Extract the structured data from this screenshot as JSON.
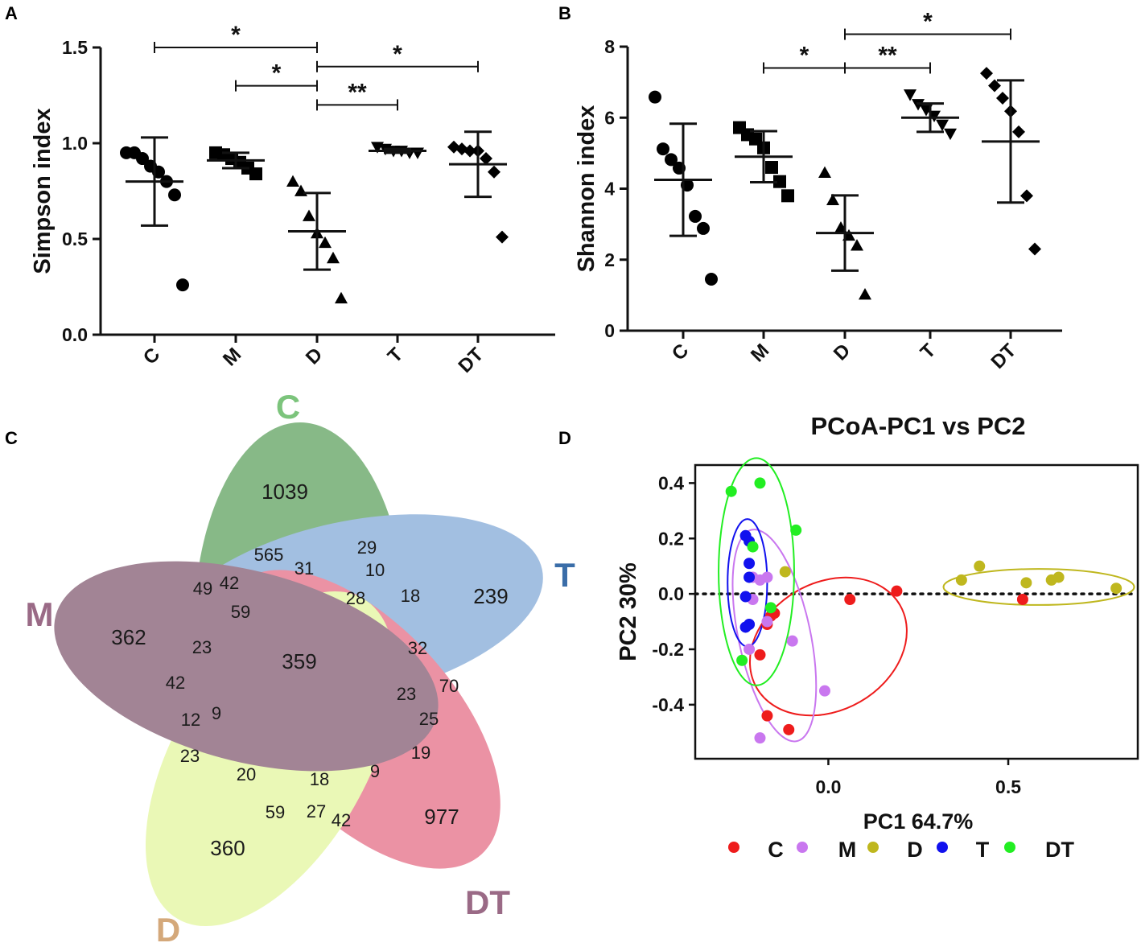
{
  "chart_data": [
    {
      "panel": "A",
      "type": "scatter",
      "ylabel": "Simpson index",
      "xlabel": "",
      "categories": [
        "C",
        "M",
        "D",
        "T",
        "DT"
      ],
      "ylim": [
        0.0,
        1.5
      ],
      "yticks": [
        "0.0",
        "0.5",
        "1.0",
        "1.5"
      ],
      "ytick_values": [
        0.0,
        0.5,
        1.0,
        1.5
      ],
      "points": [
        [
          0.95,
          0.95,
          0.92,
          0.88,
          0.85,
          0.8,
          0.73,
          0.26
        ],
        [
          0.95,
          0.94,
          0.92,
          0.9,
          0.87,
          0.84
        ],
        [
          0.8,
          0.75,
          0.62,
          0.53,
          0.48,
          0.4,
          0.19
        ],
        [
          0.98,
          0.97,
          0.96,
          0.96,
          0.95,
          0.95
        ],
        [
          0.98,
          0.97,
          0.96,
          0.96,
          0.92,
          0.85,
          0.51
        ]
      ],
      "mean": [
        0.8,
        0.91,
        0.54,
        0.96,
        0.89
      ],
      "sd": [
        0.23,
        0.04,
        0.2,
        0.01,
        0.17
      ],
      "brackets": [
        {
          "from": "C",
          "to": "D",
          "label": "*",
          "y": 1.5
        },
        {
          "from": "D",
          "to": "DT",
          "label": "*",
          "y": 1.4
        },
        {
          "from": "M",
          "to": "D",
          "label": "*",
          "y": 1.3
        },
        {
          "from": "D",
          "to": "T",
          "label": "**",
          "y": 1.2
        }
      ]
    },
    {
      "panel": "B",
      "type": "scatter",
      "ylabel": "Shannon index",
      "xlabel": "",
      "categories": [
        "C",
        "M",
        "D",
        "T",
        "DT"
      ],
      "ylim": [
        0,
        8
      ],
      "yticks": [
        "0",
        "2",
        "4",
        "6",
        "8"
      ],
      "ytick_values": [
        0,
        2,
        4,
        6,
        8
      ],
      "points": [
        [
          6.58,
          5.12,
          4.82,
          4.58,
          4.1,
          3.22,
          2.88,
          1.45
        ],
        [
          5.72,
          5.52,
          5.4,
          5.15,
          4.6,
          4.2,
          3.8
        ],
        [
          4.45,
          3.68,
          2.9,
          2.68,
          2.4,
          1.02
        ],
        [
          6.65,
          6.38,
          6.22,
          6.05,
          5.8,
          5.55
        ],
        [
          7.25,
          6.9,
          6.55,
          6.18,
          5.6,
          3.8,
          2.3
        ]
      ],
      "mean": [
        4.25,
        4.9,
        2.75,
        6.0,
        5.33
      ],
      "sd": [
        1.58,
        0.72,
        1.06,
        0.4,
        1.72
      ],
      "brackets": [
        {
          "from": "D",
          "to": "DT",
          "label": "*",
          "y": 8.35
        },
        {
          "from": "M",
          "to": "D",
          "label": "*",
          "y": 7.4
        },
        {
          "from": "D",
          "to": "T",
          "label": "**",
          "y": 7.4
        }
      ]
    },
    {
      "panel": "C",
      "type": "venn",
      "sets": [
        {
          "name": "C",
          "color": "#3f8f3f",
          "label_color": "#7cc47c"
        },
        {
          "name": "T",
          "color": "#5f8cc6",
          "label_color": "#3a6da8"
        },
        {
          "name": "DT",
          "color": "#d94a68",
          "label_color": "#9a6a86"
        },
        {
          "name": "D",
          "color": "#d8ee7a",
          "label_color": "#d4a87a"
        },
        {
          "name": "M",
          "color": "#6a3a55",
          "label_color": "#9a6a86"
        }
      ],
      "counts": [
        "1039",
        "565",
        "29",
        "31",
        "10",
        "239",
        "49",
        "42",
        "28",
        "18",
        "59",
        "362",
        "359",
        "23",
        "32",
        "42",
        "23",
        "70",
        "12",
        "9",
        "25",
        "23",
        "19",
        "20",
        "18",
        "9",
        "977",
        "59",
        "27",
        "42",
        "360"
      ]
    },
    {
      "panel": "D",
      "type": "scatter",
      "title": "PCoA-PC1 vs  PC2",
      "xlabel": "PC1 64.7%",
      "ylabel": "PC2 30%",
      "xlim": [
        -0.37,
        0.86
      ],
      "ylim": [
        -0.595,
        0.465
      ],
      "xticks": [
        "0.0",
        "0.5"
      ],
      "xtick_values": [
        0.0,
        0.5
      ],
      "yticks": [
        "0.4",
        "0.2",
        "0.0",
        "-0.2",
        "-0.4"
      ],
      "ytick_values": [
        0.4,
        0.2,
        0.0,
        -0.2,
        -0.4
      ],
      "series": [
        {
          "name": "C",
          "color": "#ee1c1c",
          "points": [
            [
              0.19,
              0.01
            ],
            [
              0.06,
              -0.02
            ],
            [
              0.54,
              -0.02
            ],
            [
              -0.16,
              -0.08
            ],
            [
              -0.17,
              -0.11
            ],
            [
              -0.15,
              -0.07
            ],
            [
              -0.19,
              -0.22
            ],
            [
              -0.17,
              -0.44
            ],
            [
              -0.11,
              -0.49
            ]
          ],
          "ellipse": {
            "cx": 0.0,
            "cy": -0.19,
            "rx": 0.23,
            "ry": 0.23,
            "angle": -30
          }
        },
        {
          "name": "M",
          "color": "#c977ef",
          "points": [
            [
              -0.19,
              0.05
            ],
            [
              -0.17,
              0.06
            ],
            [
              -0.21,
              0.06
            ],
            [
              -0.21,
              -0.02
            ],
            [
              -0.17,
              -0.1
            ],
            [
              -0.22,
              -0.2
            ],
            [
              -0.1,
              -0.17
            ],
            [
              -0.01,
              -0.35
            ],
            [
              -0.19,
              -0.52
            ]
          ],
          "ellipse": {
            "cx": -0.15,
            "cy": -0.15,
            "rx": 0.1,
            "ry": 0.39,
            "angle": -12
          }
        },
        {
          "name": "D",
          "color": "#bfb71e",
          "points": [
            [
              0.42,
              0.1
            ],
            [
              0.37,
              0.05
            ],
            [
              0.55,
              0.04
            ],
            [
              0.62,
              0.05
            ],
            [
              0.64,
              0.06
            ],
            [
              0.8,
              0.02
            ],
            [
              -0.12,
              0.08
            ]
          ],
          "ellipse": {
            "cx": 0.585,
            "cy": 0.025,
            "rx": 0.265,
            "ry": 0.065,
            "angle": 0
          }
        },
        {
          "name": "T",
          "color": "#1111ee",
          "points": [
            [
              -0.23,
              0.21
            ],
            [
              -0.22,
              0.19
            ],
            [
              -0.22,
              0.11
            ],
            [
              -0.22,
              0.06
            ],
            [
              -0.23,
              -0.01
            ],
            [
              -0.22,
              -0.11
            ],
            [
              -0.23,
              -0.12
            ]
          ],
          "ellipse": {
            "cx": -0.225,
            "cy": 0.04,
            "rx": 0.055,
            "ry": 0.23,
            "angle": 0
          }
        },
        {
          "name": "DT",
          "color": "#22ee22",
          "points": [
            [
              -0.27,
              0.37
            ],
            [
              -0.19,
              0.4
            ],
            [
              -0.09,
              0.23
            ],
            [
              -0.21,
              0.17
            ],
            [
              -0.16,
              -0.05
            ],
            [
              -0.24,
              -0.24
            ]
          ],
          "ellipse": {
            "cx": -0.2,
            "cy": 0.08,
            "rx": 0.105,
            "ry": 0.41,
            "angle": 0
          }
        }
      ]
    }
  ],
  "panel_labels": {
    "a": "A",
    "b": "B",
    "c": "C",
    "d": "D"
  }
}
